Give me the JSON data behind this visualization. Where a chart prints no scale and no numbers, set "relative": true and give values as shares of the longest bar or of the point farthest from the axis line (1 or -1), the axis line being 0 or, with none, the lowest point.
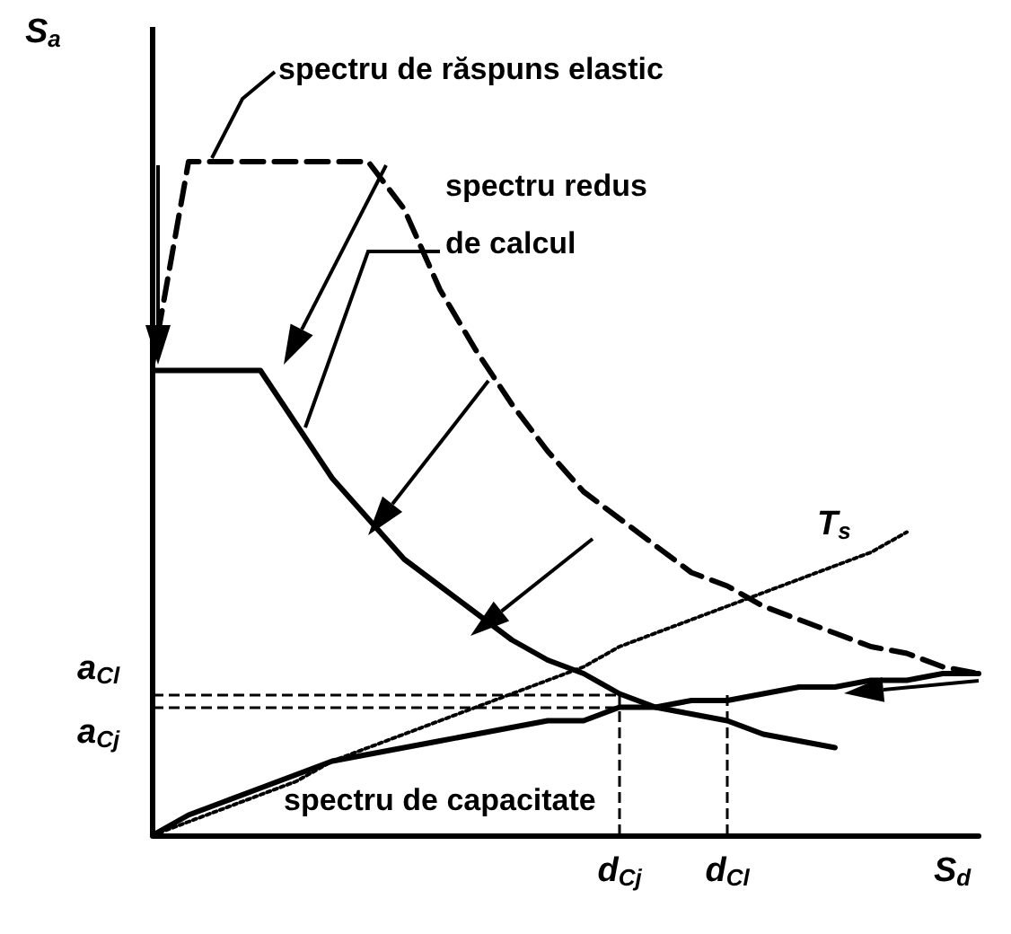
{
  "chart_data": {
    "type": "line",
    "relative": true,
    "xlabel": "S$_{d}$",
    "ylabel": "S$_{a}$",
    "marker": "none",
    "categories": [
      null,
      null,
      null,
      null,
      null,
      null,
      null,
      null,
      null,
      null,
      null,
      null,
      null,
      "d$_{Cj}$",
      null,
      null,
      "d$_{Cl}$",
      null,
      null,
      null,
      null,
      null,
      null,
      null
    ],
    "series": [
      {
        "name": "spectru de răspuns elastic",
        "color": "#000000",
        "line_style": "dashed",
        "values": [
          0.7,
          1.0,
          1.0,
          1.0,
          1.0,
          1.0,
          1.0,
          0.93,
          0.81,
          0.72,
          0.64,
          0.57,
          0.51,
          0.47,
          0.43,
          0.39,
          0.37,
          0.34,
          0.32,
          0.3,
          0.28,
          0.27,
          0.25,
          0.24
        ]
      },
      {
        "name": "spectru redus de calcul",
        "color": "#000000",
        "line_style": "solid",
        "values": [
          0.69,
          0.69,
          0.69,
          0.69,
          0.61,
          0.53,
          0.47,
          0.41,
          0.37,
          0.33,
          0.29,
          0.26,
          0.24,
          0.21,
          0.19,
          0.18,
          0.17,
          0.15,
          0.14,
          0.13,
          null,
          null,
          null,
          null
        ]
      },
      {
        "name": "spectru de capacitate",
        "color": "#000000",
        "line_style": "solid",
        "values": [
          0,
          0.03,
          0.05,
          0.07,
          0.09,
          0.11,
          0.12,
          0.13,
          0.14,
          0.15,
          0.16,
          0.17,
          0.17,
          0.19,
          0.19,
          0.2,
          0.2,
          0.21,
          0.22,
          0.22,
          0.23,
          0.23,
          0.24,
          0.24
        ]
      },
      {
        "name": "T$_{s}$",
        "color": "#000000",
        "line_style": "dotted",
        "values": [
          0,
          0.02,
          0.04,
          0.06,
          0.08,
          0.11,
          0.13,
          0.15,
          0.17,
          0.19,
          0.21,
          0.23,
          0.25,
          0.28,
          0.3,
          0.32,
          0.34,
          0.36,
          0.38,
          0.4,
          0.42,
          0.45,
          null,
          null
        ]
      }
    ],
    "ref_lines": [
      {
        "axis": "y",
        "value": 0.21,
        "label": "a$_{Cl}$",
        "color": "#000000",
        "line_style": "dashed"
      },
      {
        "axis": "y",
        "value": 0.19,
        "label": "a$_{Cj}$",
        "color": "#000000",
        "line_style": "dashed"
      },
      {
        "axis": "x",
        "value": "d$_{Cj}$",
        "label": null,
        "color": "#000000",
        "line_style": "dashed"
      },
      {
        "axis": "x",
        "value": "d$_{Cl}$",
        "label": null,
        "color": "#000000",
        "line_style": "dashed"
      }
    ]
  }
}
